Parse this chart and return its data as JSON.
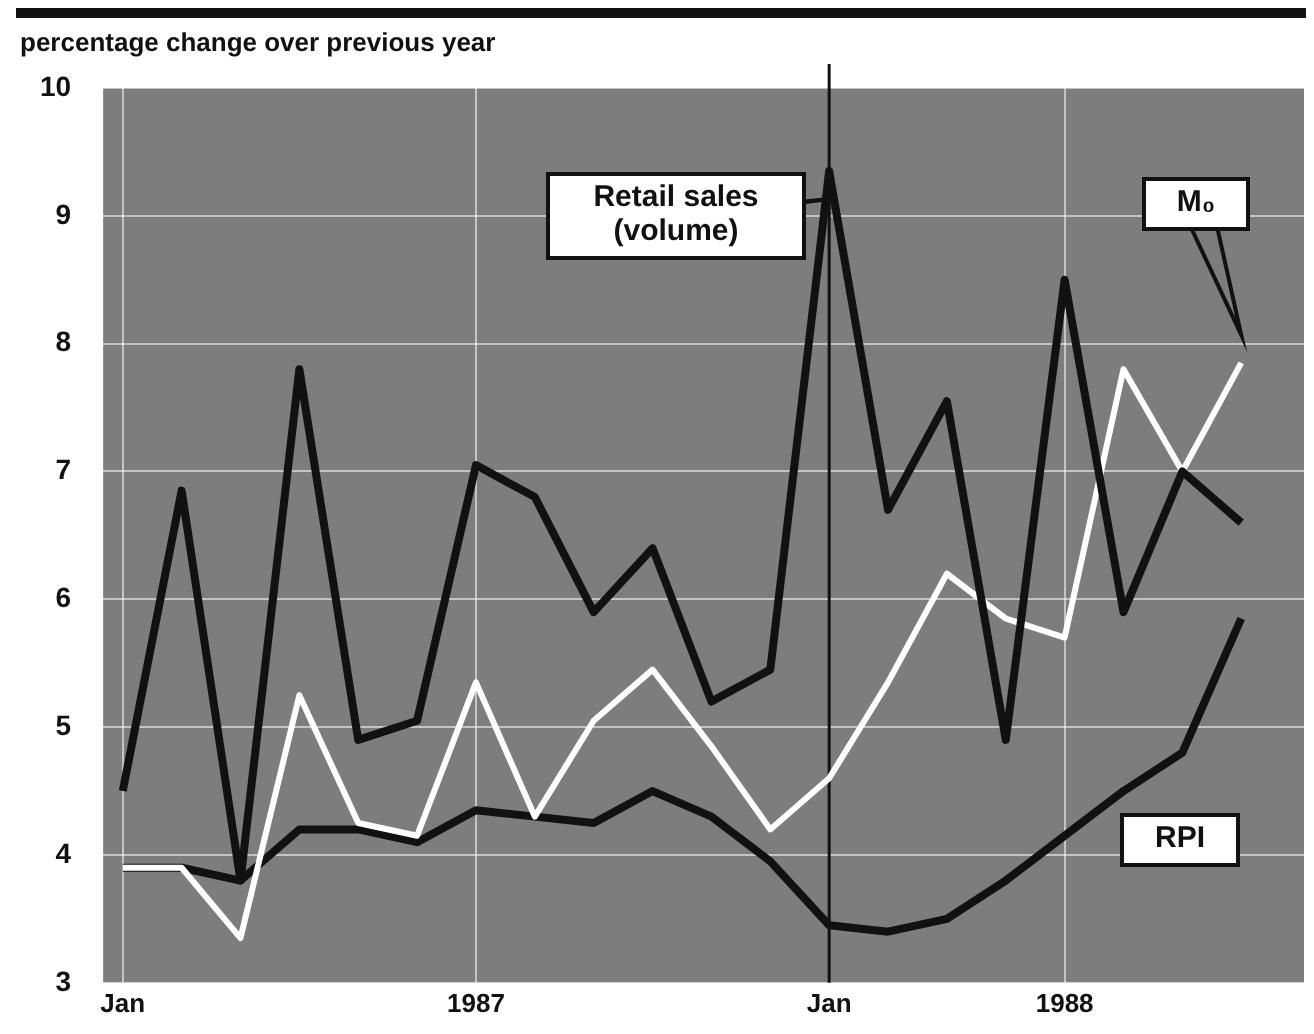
{
  "chart_data": {
    "type": "line",
    "ylabel": "percentage change over previous year",
    "x": [
      "1987-01",
      "1987-02",
      "1987-03",
      "1987-04",
      "1987-05",
      "1987-06",
      "1987-07",
      "1987-08",
      "1987-09",
      "1987-10",
      "1987-11",
      "1987-12",
      "1988-01",
      "1988-02",
      "1988-03",
      "1988-04",
      "1988-05",
      "1988-06",
      "1988-07",
      "1988-08"
    ],
    "series": [
      {
        "name": "Retail sales (volume)",
        "color": "#111111",
        "values": [
          4.5,
          6.85,
          3.8,
          7.8,
          4.9,
          5.05,
          7.05,
          6.8,
          5.9,
          6.4,
          5.2,
          5.45,
          9.35,
          6.7,
          7.55,
          4.9,
          8.5,
          5.9,
          7.0,
          6.6
        ]
      },
      {
        "name": "M₀",
        "color": "#ffffff",
        "values": [
          3.9,
          3.9,
          3.35,
          5.25,
          4.25,
          4.15,
          5.35,
          4.3,
          5.05,
          5.45,
          4.85,
          4.2,
          4.6,
          5.35,
          6.2,
          5.85,
          5.7,
          7.8,
          7.0,
          7.85
        ]
      },
      {
        "name": "RPI",
        "color": "#111111",
        "values": [
          3.9,
          3.9,
          3.8,
          4.2,
          4.2,
          4.1,
          4.35,
          4.3,
          4.25,
          4.5,
          4.3,
          3.95,
          3.45,
          3.4,
          3.5,
          3.8,
          4.15,
          4.5,
          4.8,
          5.85
        ]
      }
    ],
    "xlim": [
      "1986-12-21",
      "1988-09-03"
    ],
    "xticks": [
      {
        "value": "1987-01",
        "label": "Jan"
      },
      {
        "value": "1987-07",
        "label": "1987"
      },
      {
        "value": "1988-01",
        "label": "Jan"
      },
      {
        "value": "1988-05",
        "label": "1988"
      }
    ],
    "ylim": [
      3,
      10
    ],
    "yticks": [
      3,
      4,
      5,
      6,
      7,
      8,
      9,
      10
    ],
    "ref_lines": [
      {
        "axis": "x",
        "value": "1988-01",
        "color": "#111111"
      }
    ],
    "grid": true,
    "legend": false,
    "marker": "none",
    "line_style": "solid"
  }
}
